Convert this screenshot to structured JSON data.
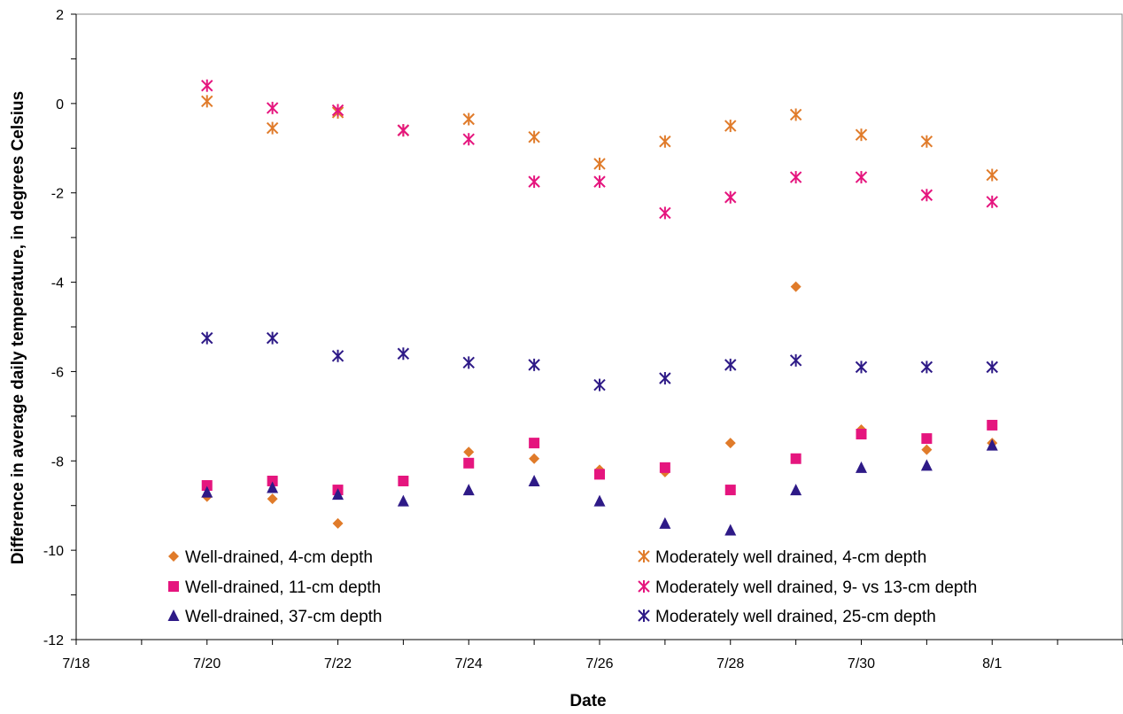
{
  "chart_data": {
    "type": "scatter",
    "title": "",
    "xlabel": "Date",
    "ylabel": "Difference in average daily temperature, in degrees Celsius",
    "x_ticks": [
      "7/18",
      "7/20",
      "7/22",
      "7/24",
      "7/26",
      "7/28",
      "7/30",
      "8/1"
    ],
    "xlim": [
      "7/18",
      "8/3"
    ],
    "ylim": [
      -12,
      2
    ],
    "y_ticks": [
      "-12",
      "-10",
      "-8",
      "-6",
      "-4",
      "-2",
      "0",
      "2"
    ],
    "grid": false,
    "legend_placement": "bottom",
    "x": [
      "7/20",
      "7/21",
      "7/22",
      "7/23",
      "7/24",
      "7/25",
      "7/26",
      "7/27",
      "7/28",
      "7/29",
      "7/30",
      "7/31",
      "8/1"
    ],
    "series": [
      {
        "name": "Well-drained, 4-cm depth",
        "marker": "diamond",
        "color": "#E07B2A",
        "values": [
          -8.8,
          -8.85,
          -9.4,
          -8.45,
          -7.8,
          -7.95,
          -8.2,
          -8.25,
          -7.6,
          -4.1,
          -7.3,
          -7.75,
          -7.6
        ]
      },
      {
        "name": "Well-drained, 11-cm depth",
        "marker": "square",
        "color": "#E5157E",
        "values": [
          -8.55,
          -8.45,
          -8.65,
          -8.45,
          -8.05,
          -7.6,
          -8.3,
          -8.15,
          -8.65,
          -7.95,
          -7.4,
          -7.5,
          -7.2
        ]
      },
      {
        "name": "Well-drained, 37-cm depth",
        "marker": "triangle",
        "color": "#2E1A87",
        "values": [
          -8.7,
          -8.6,
          -8.75,
          -8.9,
          -8.65,
          -8.45,
          -8.9,
          -9.4,
          -9.55,
          -8.65,
          -8.15,
          -8.1,
          -7.65
        ]
      },
      {
        "name": "Moderately well drained, 4-cm depth",
        "marker": "asterisk",
        "color": "#E07B2A",
        "values": [
          0.05,
          -0.55,
          -0.2,
          -0.6,
          -0.35,
          -0.75,
          -1.35,
          -0.85,
          -0.5,
          -0.25,
          -0.7,
          -0.85,
          -1.6
        ]
      },
      {
        "name": "Moderately well drained, 9- vs 13-cm depth",
        "marker": "asterisk",
        "color": "#E5157E",
        "values": [
          0.4,
          -0.1,
          -0.15,
          -0.6,
          -0.8,
          -1.75,
          -1.75,
          -2.45,
          -2.1,
          -1.65,
          -1.65,
          -2.05,
          -2.2
        ]
      },
      {
        "name": "Moderately well drained, 25-cm depth",
        "marker": "asterisk",
        "color": "#2E1A87",
        "values": [
          -5.25,
          -5.25,
          -5.65,
          -5.6,
          -5.8,
          -5.85,
          -6.3,
          -6.15,
          -5.85,
          -5.75,
          -5.9,
          -5.9,
          -5.9
        ]
      }
    ]
  }
}
